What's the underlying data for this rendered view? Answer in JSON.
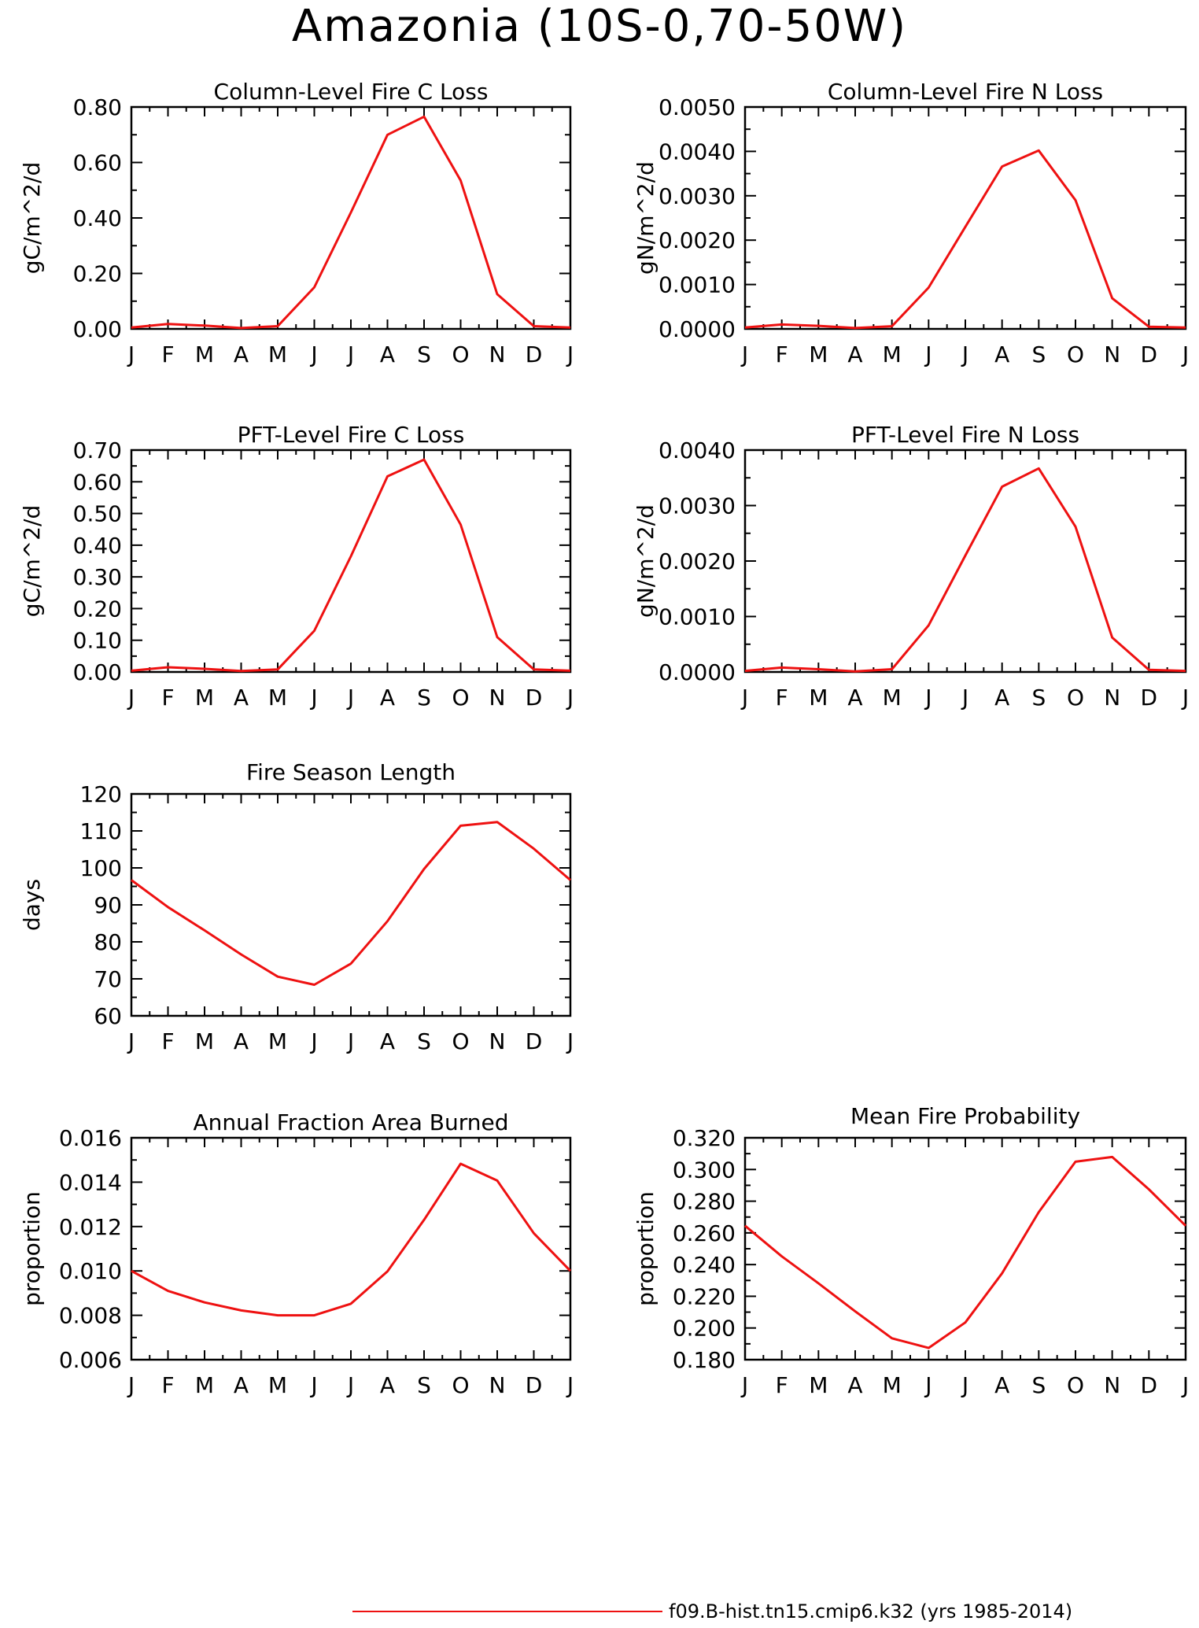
{
  "main_title": "Amazonia (10S-0,70-50W)",
  "legend": {
    "label": "f09.B-hist.tn15.cmip6.k32 (yrs 1985-2014)",
    "color": "#ee1111"
  },
  "line_color": "#ee1111",
  "chart_data": [
    {
      "type": "line",
      "title": "Column-Level Fire C Loss",
      "ylabel": "gC/m^2/d",
      "categories": [
        "J",
        "F",
        "M",
        "A",
        "M",
        "J",
        "J",
        "A",
        "S",
        "O",
        "N",
        "D",
        "J"
      ],
      "ylim": [
        0,
        0.8
      ],
      "yticks": [
        "0.00",
        "0.20",
        "0.40",
        "0.60",
        "0.80"
      ],
      "series": [
        {
          "values": [
            0.005,
            0.018,
            0.012,
            0.003,
            0.01,
            0.15,
            0.42,
            0.7,
            0.765,
            0.535,
            0.125,
            0.01,
            0.005
          ]
        }
      ]
    },
    {
      "type": "line",
      "title": "Column-Level Fire N Loss",
      "ylabel": "gN/m^2/d",
      "categories": [
        "J",
        "F",
        "M",
        "A",
        "M",
        "J",
        "J",
        "A",
        "S",
        "O",
        "N",
        "D",
        "J"
      ],
      "ylim": [
        0,
        0.005
      ],
      "yticks": [
        "0.0000",
        "0.0010",
        "0.0020",
        "0.0030",
        "0.0040",
        "0.0050"
      ],
      "series": [
        {
          "values": [
            3e-05,
            0.0001,
            7e-05,
            2e-05,
            6e-05,
            0.00093,
            0.0023,
            0.00366,
            0.00402,
            0.0029,
            0.00069,
            5e-05,
            3e-05
          ]
        }
      ]
    },
    {
      "type": "line",
      "title": "PFT-Level Fire C Loss",
      "ylabel": "gC/m^2/d",
      "categories": [
        "J",
        "F",
        "M",
        "A",
        "M",
        "J",
        "J",
        "A",
        "S",
        "O",
        "N",
        "D",
        "J"
      ],
      "ylim": [
        0,
        0.7
      ],
      "yticks": [
        "0.00",
        "0.10",
        "0.20",
        "0.30",
        "0.40",
        "0.50",
        "0.60",
        "0.70"
      ],
      "series": [
        {
          "values": [
            0.004,
            0.015,
            0.01,
            0.003,
            0.008,
            0.13,
            0.365,
            0.617,
            0.67,
            0.465,
            0.11,
            0.008,
            0.004
          ]
        }
      ]
    },
    {
      "type": "line",
      "title": "PFT-Level Fire N Loss",
      "ylabel": "gN/m^2/d",
      "categories": [
        "J",
        "F",
        "M",
        "A",
        "M",
        "J",
        "J",
        "A",
        "S",
        "O",
        "N",
        "D",
        "J"
      ],
      "ylim": [
        0,
        0.004
      ],
      "yticks": [
        "0.0000",
        "0.0010",
        "0.0020",
        "0.0030",
        "0.0040"
      ],
      "series": [
        {
          "values": [
            2e-05,
            8e-05,
            5e-05,
            1e-05,
            5e-05,
            0.00084,
            0.0021,
            0.00334,
            0.00367,
            0.00262,
            0.00062,
            4e-05,
            2e-05
          ]
        }
      ]
    },
    {
      "type": "line",
      "title": "Fire Season Length",
      "ylabel": "days",
      "categories": [
        "J",
        "F",
        "M",
        "A",
        "M",
        "J",
        "J",
        "A",
        "S",
        "O",
        "N",
        "D",
        "J"
      ],
      "ylim": [
        60,
        120
      ],
      "yticks": [
        "60",
        "70",
        "80",
        "90",
        "100",
        "110",
        "120"
      ],
      "series": [
        {
          "values": [
            96.7,
            89.4,
            83.1,
            76.6,
            70.6,
            68.4,
            74.1,
            85.6,
            99.7,
            111.4,
            112.4,
            105.2,
            96.7
          ]
        }
      ]
    },
    {
      "type": "line",
      "title": "Annual Fraction Area Burned",
      "ylabel": "proportion",
      "categories": [
        "J",
        "F",
        "M",
        "A",
        "M",
        "J",
        "J",
        "A",
        "S",
        "O",
        "N",
        "D",
        "J"
      ],
      "ylim": [
        0.006,
        0.016
      ],
      "yticks": [
        "0.006",
        "0.008",
        "0.010",
        "0.012",
        "0.014",
        "0.016"
      ],
      "series": [
        {
          "values": [
            0.01,
            0.0091,
            0.00858,
            0.00822,
            0.008,
            0.008,
            0.00852,
            0.00998,
            0.0123,
            0.01483,
            0.01407,
            0.0117,
            0.01
          ]
        }
      ]
    },
    {
      "type": "line",
      "title": "Mean Fire Probability",
      "ylabel": "proportion",
      "categories": [
        "J",
        "F",
        "M",
        "A",
        "M",
        "J",
        "J",
        "A",
        "S",
        "O",
        "N",
        "D",
        "J"
      ],
      "ylim": [
        0.18,
        0.32
      ],
      "yticks": [
        "0.180",
        "0.200",
        "0.220",
        "0.240",
        "0.260",
        "0.280",
        "0.300",
        "0.320"
      ],
      "series": [
        {
          "values": [
            0.2645,
            0.2452,
            0.2282,
            0.2105,
            0.1935,
            0.1874,
            0.2035,
            0.2345,
            0.2731,
            0.3049,
            0.3079,
            0.2875,
            0.2645
          ]
        }
      ]
    }
  ]
}
